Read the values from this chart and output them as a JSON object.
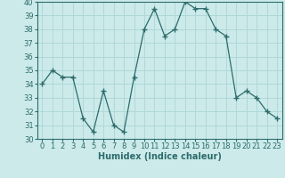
{
  "x": [
    0,
    1,
    2,
    3,
    4,
    5,
    6,
    7,
    8,
    9,
    10,
    11,
    12,
    13,
    14,
    15,
    16,
    17,
    18,
    19,
    20,
    21,
    22,
    23
  ],
  "y": [
    34,
    35,
    34.5,
    34.5,
    31.5,
    30.5,
    33.5,
    31,
    30.5,
    34.5,
    38,
    39.5,
    37.5,
    38,
    40,
    39.5,
    39.5,
    38,
    37.5,
    33,
    33.5,
    33,
    32,
    31.5
  ],
  "line_color": "#2d6b6b",
  "marker": "+",
  "marker_size": 4,
  "marker_linewidth": 1.0,
  "bg_color": "#cceaea",
  "grid_color": "#b0d8d8",
  "xlabel": "Humidex (Indice chaleur)",
  "ylim": [
    30,
    40
  ],
  "xlim": [
    -0.5,
    23.5
  ],
  "yticks": [
    30,
    31,
    32,
    33,
    34,
    35,
    36,
    37,
    38,
    39,
    40
  ],
  "xticks": [
    0,
    1,
    2,
    3,
    4,
    5,
    6,
    7,
    8,
    9,
    10,
    11,
    12,
    13,
    14,
    15,
    16,
    17,
    18,
    19,
    20,
    21,
    22,
    23
  ],
  "xlabel_fontsize": 7,
  "tick_fontsize": 6,
  "linewidth": 0.9
}
